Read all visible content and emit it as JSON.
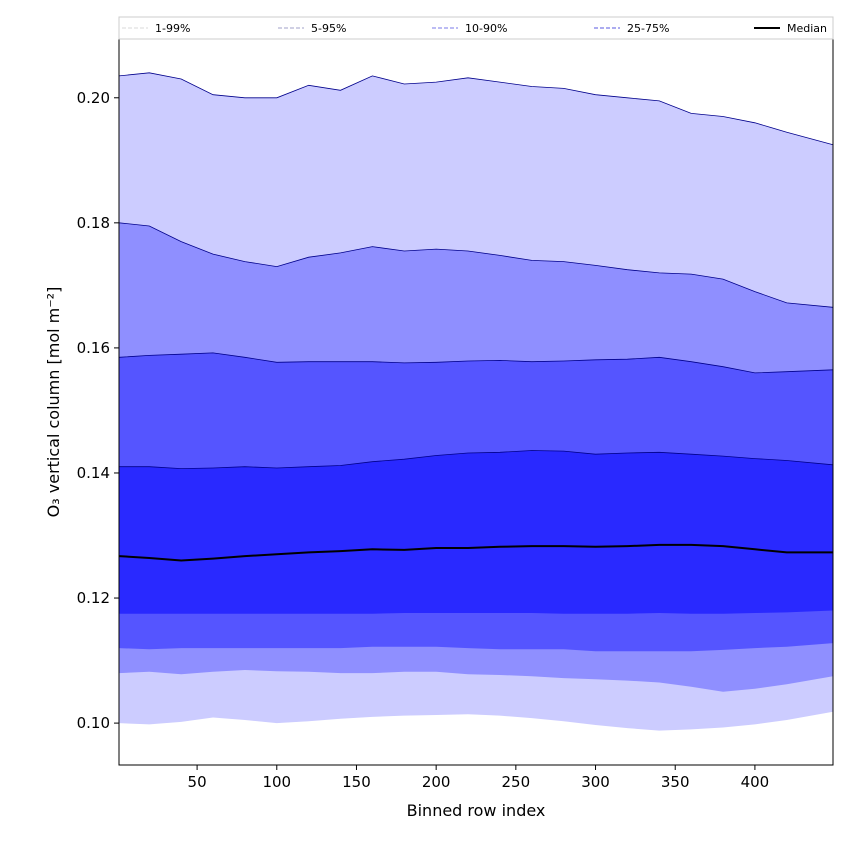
{
  "chart_data": {
    "type": "area",
    "xlabel": "Binned row index",
    "ylabel": "O₃ vertical column [mol m⁻²]",
    "xlim": [
      1,
      449
    ],
    "ylim": [
      0.0933,
      0.2094
    ],
    "xticks": [
      50,
      100,
      150,
      200,
      250,
      300,
      350,
      400
    ],
    "yticks": [
      0.1,
      0.12,
      0.14,
      0.16,
      0.18,
      0.2
    ],
    "ytick_labels": [
      "0.10",
      "0.12",
      "0.14",
      "0.16",
      "0.18",
      "0.20"
    ],
    "grid": false,
    "legend_position": "top",
    "x": [
      1,
      20,
      40,
      60,
      80,
      100,
      120,
      140,
      160,
      180,
      200,
      220,
      240,
      260,
      280,
      300,
      320,
      340,
      360,
      380,
      400,
      420,
      449
    ],
    "series": [
      {
        "name": "1-99%",
        "color": "#ccccff",
        "stroke": "#d9d9d9",
        "low": [
          0.1,
          0.0998,
          0.1002,
          0.1009,
          0.1005,
          0.1,
          0.1003,
          0.1007,
          0.101,
          0.1012,
          0.1013,
          0.1014,
          0.1012,
          0.1008,
          0.1003,
          0.0997,
          0.0992,
          0.0988,
          0.099,
          0.0993,
          0.0998,
          0.1005,
          0.1018
        ],
        "high": [
          0.2035,
          0.204,
          0.203,
          0.2005,
          0.2,
          0.2,
          0.202,
          0.2012,
          0.2035,
          0.2022,
          0.2025,
          0.2032,
          0.2025,
          0.2018,
          0.2015,
          0.2005,
          0.2,
          0.1995,
          0.1975,
          0.197,
          0.196,
          0.1945,
          0.1925
        ]
      },
      {
        "name": "5-95%",
        "color": "#8f8fff",
        "stroke": "#a0a0c8",
        "low": [
          0.108,
          0.1082,
          0.1078,
          0.1082,
          0.1085,
          0.1083,
          0.1082,
          0.108,
          0.108,
          0.1082,
          0.1082,
          0.1078,
          0.1077,
          0.1075,
          0.1072,
          0.107,
          0.1068,
          0.1065,
          0.1058,
          0.105,
          0.1055,
          0.1062,
          0.1075
        ],
        "high": [
          0.18,
          0.1795,
          0.177,
          0.175,
          0.1738,
          0.173,
          0.1745,
          0.1752,
          0.1762,
          0.1755,
          0.1758,
          0.1755,
          0.1748,
          0.174,
          0.1738,
          0.1732,
          0.1725,
          0.172,
          0.1718,
          0.171,
          0.169,
          0.1672,
          0.1665
        ]
      },
      {
        "name": "10-90%",
        "color": "#5555ff",
        "stroke": "#7a7ae8",
        "low": [
          0.112,
          0.1118,
          0.112,
          0.112,
          0.112,
          0.112,
          0.112,
          0.112,
          0.1122,
          0.1122,
          0.1122,
          0.112,
          0.1118,
          0.1118,
          0.1118,
          0.1115,
          0.1115,
          0.1115,
          0.1115,
          0.1117,
          0.112,
          0.1122,
          0.1128
        ],
        "high": [
          0.1585,
          0.1588,
          0.159,
          0.1592,
          0.1585,
          0.1577,
          0.1578,
          0.1578,
          0.1578,
          0.1576,
          0.1577,
          0.1579,
          0.158,
          0.1578,
          0.1579,
          0.1581,
          0.1582,
          0.1585,
          0.1578,
          0.157,
          0.156,
          0.1562,
          0.1565
        ]
      },
      {
        "name": "25-75%",
        "color": "#2929ff",
        "stroke": "#5a5ae0",
        "low": [
          0.1175,
          0.1175,
          0.1175,
          0.1175,
          0.1175,
          0.1175,
          0.1175,
          0.1175,
          0.1175,
          0.1176,
          0.1176,
          0.1176,
          0.1176,
          0.1176,
          0.1175,
          0.1175,
          0.1175,
          0.1176,
          0.1175,
          0.1175,
          0.1176,
          0.1177,
          0.118
        ],
        "high": [
          0.141,
          0.141,
          0.1407,
          0.1408,
          0.141,
          0.1408,
          0.141,
          0.1412,
          0.1418,
          0.1422,
          0.1428,
          0.1432,
          0.1433,
          0.1436,
          0.1435,
          0.143,
          0.1432,
          0.1433,
          0.143,
          0.1427,
          0.1423,
          0.142,
          0.1413
        ]
      }
    ],
    "median": {
      "name": "Median",
      "color": "#000000",
      "values": [
        0.1267,
        0.1264,
        0.126,
        0.1263,
        0.1267,
        0.127,
        0.1273,
        0.1275,
        0.1278,
        0.1277,
        0.128,
        0.128,
        0.1282,
        0.1283,
        0.1283,
        0.1282,
        0.1283,
        0.1285,
        0.1285,
        0.1283,
        0.1278,
        0.1273,
        0.1273
      ]
    }
  }
}
